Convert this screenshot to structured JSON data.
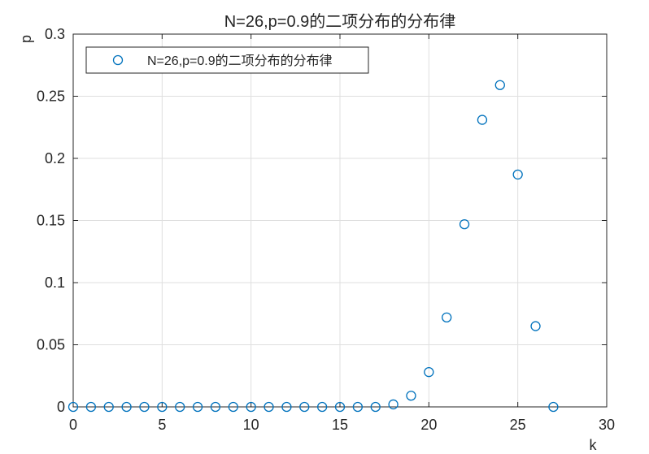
{
  "chart_data": {
    "type": "scatter",
    "title": "N=26,p=0.9的二项分布的分布律",
    "xlabel": "k",
    "ylabel": "p",
    "xlim": [
      0,
      30
    ],
    "ylim": [
      0,
      0.3
    ],
    "xticks": [
      "0",
      "5",
      "10",
      "15",
      "20",
      "25",
      "30"
    ],
    "yticks": [
      "0",
      "0.05",
      "0.1",
      "0.15",
      "0.2",
      "0.25",
      "0.3"
    ],
    "grid": true,
    "legend_position": "top-left",
    "marker": "circle-open",
    "color": "#0072BD",
    "series": [
      {
        "name": "N=26,p=0.9的二项分布的分布律",
        "x": [
          0,
          1,
          2,
          3,
          4,
          5,
          6,
          7,
          8,
          9,
          10,
          11,
          12,
          13,
          14,
          15,
          16,
          17,
          18,
          19,
          20,
          21,
          22,
          23,
          24,
          25,
          26,
          27
        ],
        "y": [
          0,
          0,
          0,
          0,
          0,
          0,
          0,
          0,
          0,
          0,
          0,
          0,
          0,
          0,
          0,
          0,
          0,
          0,
          0.002,
          0.009,
          0.028,
          0.072,
          0.147,
          0.231,
          0.259,
          0.187,
          0.065,
          0
        ]
      }
    ]
  }
}
